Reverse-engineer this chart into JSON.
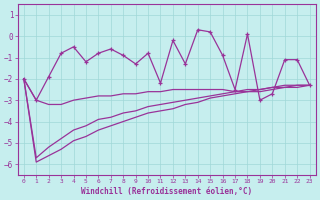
{
  "xlabel": "Windchill (Refroidissement éolien,°C)",
  "background_color": "#c6eeee",
  "line_color": "#993399",
  "grid_color": "#a0d8d8",
  "x": [
    0,
    1,
    2,
    3,
    4,
    5,
    6,
    7,
    8,
    9,
    10,
    11,
    12,
    13,
    14,
    15,
    16,
    17,
    18,
    19,
    20,
    21,
    22,
    23
  ],
  "y_jagged": [
    -2.0,
    -3.0,
    -1.9,
    -0.8,
    -0.5,
    -1.2,
    -0.8,
    -0.6,
    -0.9,
    -1.3,
    -0.8,
    -2.2,
    -0.2,
    -1.3,
    0.3,
    0.2,
    -0.9,
    -2.5,
    0.1,
    -3.0,
    -2.7,
    -1.1,
    -1.1,
    -2.3
  ],
  "y_flat": [
    -2.0,
    -3.0,
    -3.2,
    -3.2,
    -3.0,
    -2.9,
    -2.8,
    -2.8,
    -2.7,
    -2.7,
    -2.6,
    -2.6,
    -2.5,
    -2.5,
    -2.5,
    -2.5,
    -2.5,
    -2.6,
    -2.6,
    -2.6,
    -2.5,
    -2.4,
    -2.4,
    -2.3
  ],
  "y_upper_slope": [
    -2.0,
    -5.7,
    -5.2,
    -4.8,
    -4.4,
    -4.2,
    -3.9,
    -3.8,
    -3.6,
    -3.5,
    -3.3,
    -3.2,
    -3.1,
    -3.0,
    -2.9,
    -2.8,
    -2.7,
    -2.6,
    -2.5,
    -2.5,
    -2.4,
    -2.4,
    -2.3,
    -2.3
  ],
  "y_lower_slope": [
    -2.0,
    -5.9,
    -5.6,
    -5.3,
    -4.9,
    -4.7,
    -4.4,
    -4.2,
    -4.0,
    -3.8,
    -3.6,
    -3.5,
    -3.4,
    -3.2,
    -3.1,
    -2.9,
    -2.8,
    -2.7,
    -2.6,
    -2.5,
    -2.4,
    -2.3,
    -2.3,
    -2.3
  ],
  "ylim": [
    -6.5,
    1.5
  ],
  "yticks": [
    1,
    0,
    -1,
    -2,
    -3,
    -4,
    -5,
    -6
  ],
  "xticks": [
    0,
    1,
    2,
    3,
    4,
    5,
    6,
    7,
    8,
    9,
    10,
    11,
    12,
    13,
    14,
    15,
    16,
    17,
    18,
    19,
    20,
    21,
    22,
    23
  ]
}
